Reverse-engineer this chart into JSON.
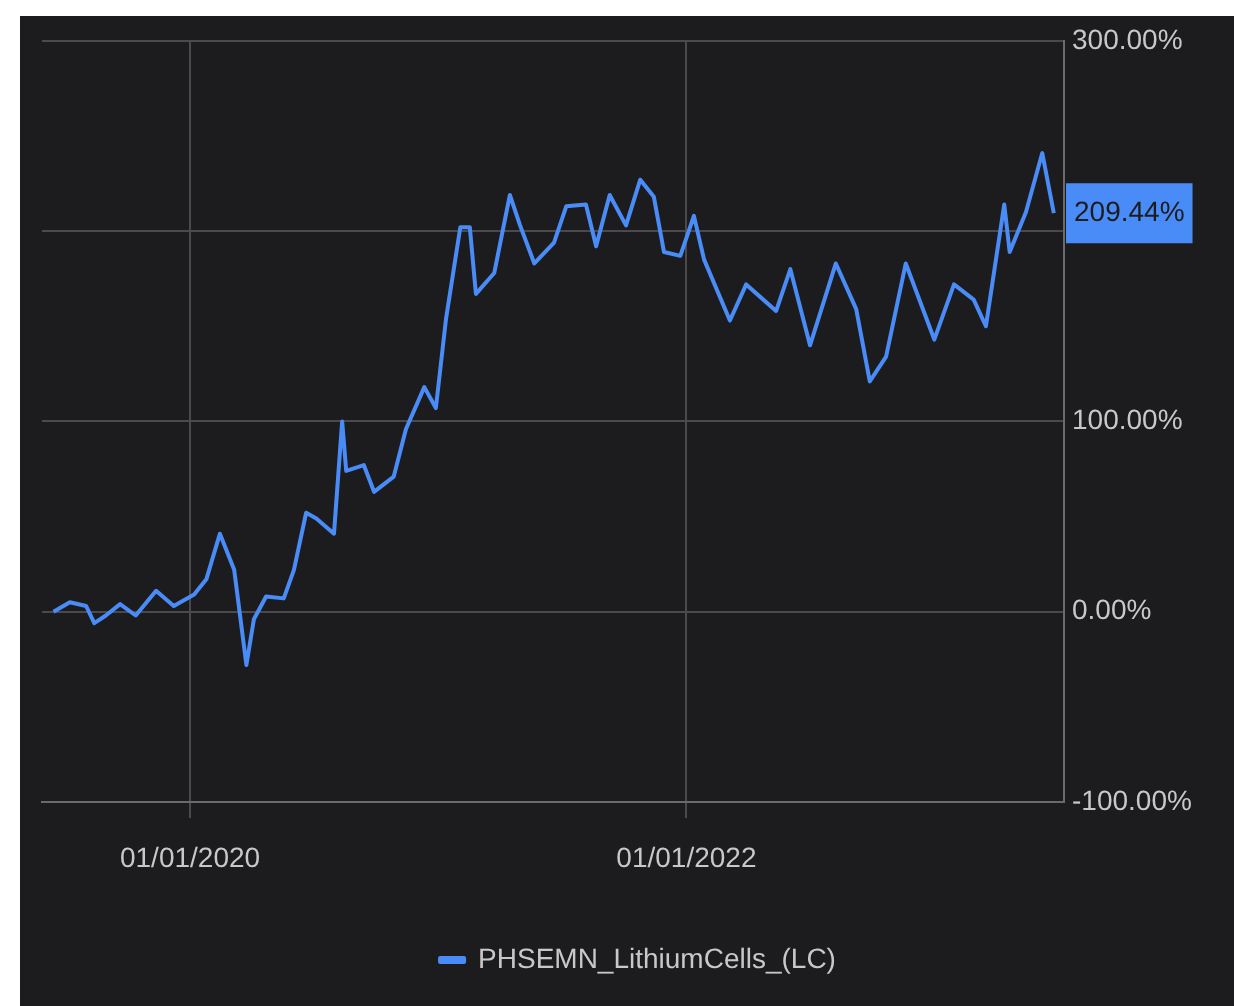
{
  "chart_data": {
    "type": "line",
    "x": [
      "2019-06-14",
      "2019-07-08",
      "2019-08-01",
      "2019-08-13",
      "2019-08-30",
      "2019-09-20",
      "2019-10-13",
      "2019-11-12",
      "2019-12-08",
      "2020-01-07",
      "2020-01-25",
      "2020-02-14",
      "2020-03-06",
      "2020-03-24",
      "2020-04-04",
      "2020-04-22",
      "2020-05-18",
      "2020-06-02",
      "2020-06-20",
      "2020-07-05",
      "2020-07-31",
      "2020-08-12",
      "2020-08-18",
      "2020-09-13",
      "2020-09-28",
      "2020-10-27",
      "2020-11-14",
      "2020-12-11",
      "2020-12-28",
      "2021-01-12",
      "2021-02-02",
      "2021-02-16",
      "2021-02-25",
      "2021-03-24",
      "2021-04-16",
      "2021-05-01",
      "2021-05-22",
      "2021-06-20",
      "2021-07-08",
      "2021-08-06",
      "2021-08-21",
      "2021-09-10",
      "2021-10-04",
      "2021-10-25",
      "2021-11-14",
      "2021-11-29",
      "2021-12-23",
      "2022-01-12",
      "2022-01-27",
      "2022-03-06",
      "2022-03-30",
      "2022-05-13",
      "2022-06-03",
      "2022-07-02",
      "2022-08-09",
      "2022-09-08",
      "2022-09-28",
      "2022-10-22",
      "2022-11-20",
      "2023-01-01",
      "2023-01-30",
      "2023-02-28",
      "2023-03-18",
      "2023-04-14",
      "2023-04-22",
      "2023-05-16",
      "2023-06-09",
      "2023-06-26"
    ],
    "series": [
      {
        "name": "PHSEMN_LithiumCells_(LC)",
        "color": "#4a8cf7",
        "values": [
          0,
          5,
          3,
          -6,
          -2,
          4,
          -2,
          11,
          3,
          9,
          17,
          41,
          22,
          -28,
          -4,
          8,
          7,
          22,
          52,
          49,
          41,
          100,
          74,
          77,
          63,
          71,
          96,
          118,
          107,
          154,
          202,
          202,
          167,
          178,
          219,
          203,
          183,
          194,
          213,
          214,
          192,
          219,
          203,
          227,
          218,
          189,
          187,
          208,
          185,
          153,
          172,
          158,
          180,
          140,
          183,
          159,
          121,
          134,
          183,
          143,
          172,
          164,
          150,
          214,
          189,
          210,
          241,
          209.44
        ],
        "value_labels": [
          null,
          null,
          null,
          null,
          null,
          null,
          null,
          null,
          null,
          null,
          null,
          null,
          null,
          null,
          null,
          null,
          null,
          null,
          null,
          null,
          null,
          null,
          null,
          null,
          null,
          null,
          null,
          null,
          null,
          null,
          null,
          null,
          null,
          null,
          null,
          null,
          null,
          null,
          null,
          null,
          null,
          null,
          null,
          null,
          null,
          null,
          null,
          null,
          null,
          null,
          null,
          null,
          null,
          null,
          null,
          null,
          null,
          null,
          null,
          null,
          null,
          null,
          null,
          null,
          null,
          null,
          null,
          "209.44%"
        ]
      }
    ],
    "xlim": [
      "2019-05-28",
      "2023-07-11"
    ],
    "xticks": [
      {
        "value": "2020-01-01",
        "label": "01/01/2020"
      },
      {
        "value": "2022-01-01",
        "label": "01/01/2022"
      }
    ],
    "ylim": [
      -100,
      300
    ],
    "yticks": [
      {
        "value": -100,
        "label": "-100.00%"
      },
      {
        "value": 0,
        "label": "0.00%"
      },
      {
        "value": 100,
        "label": "100.00%"
      },
      {
        "value": 200,
        "label": null
      },
      {
        "value": 300,
        "label": "300.00%"
      }
    ],
    "grid": true,
    "legend": "bottom",
    "marker": "none",
    "line_style": "solid"
  }
}
